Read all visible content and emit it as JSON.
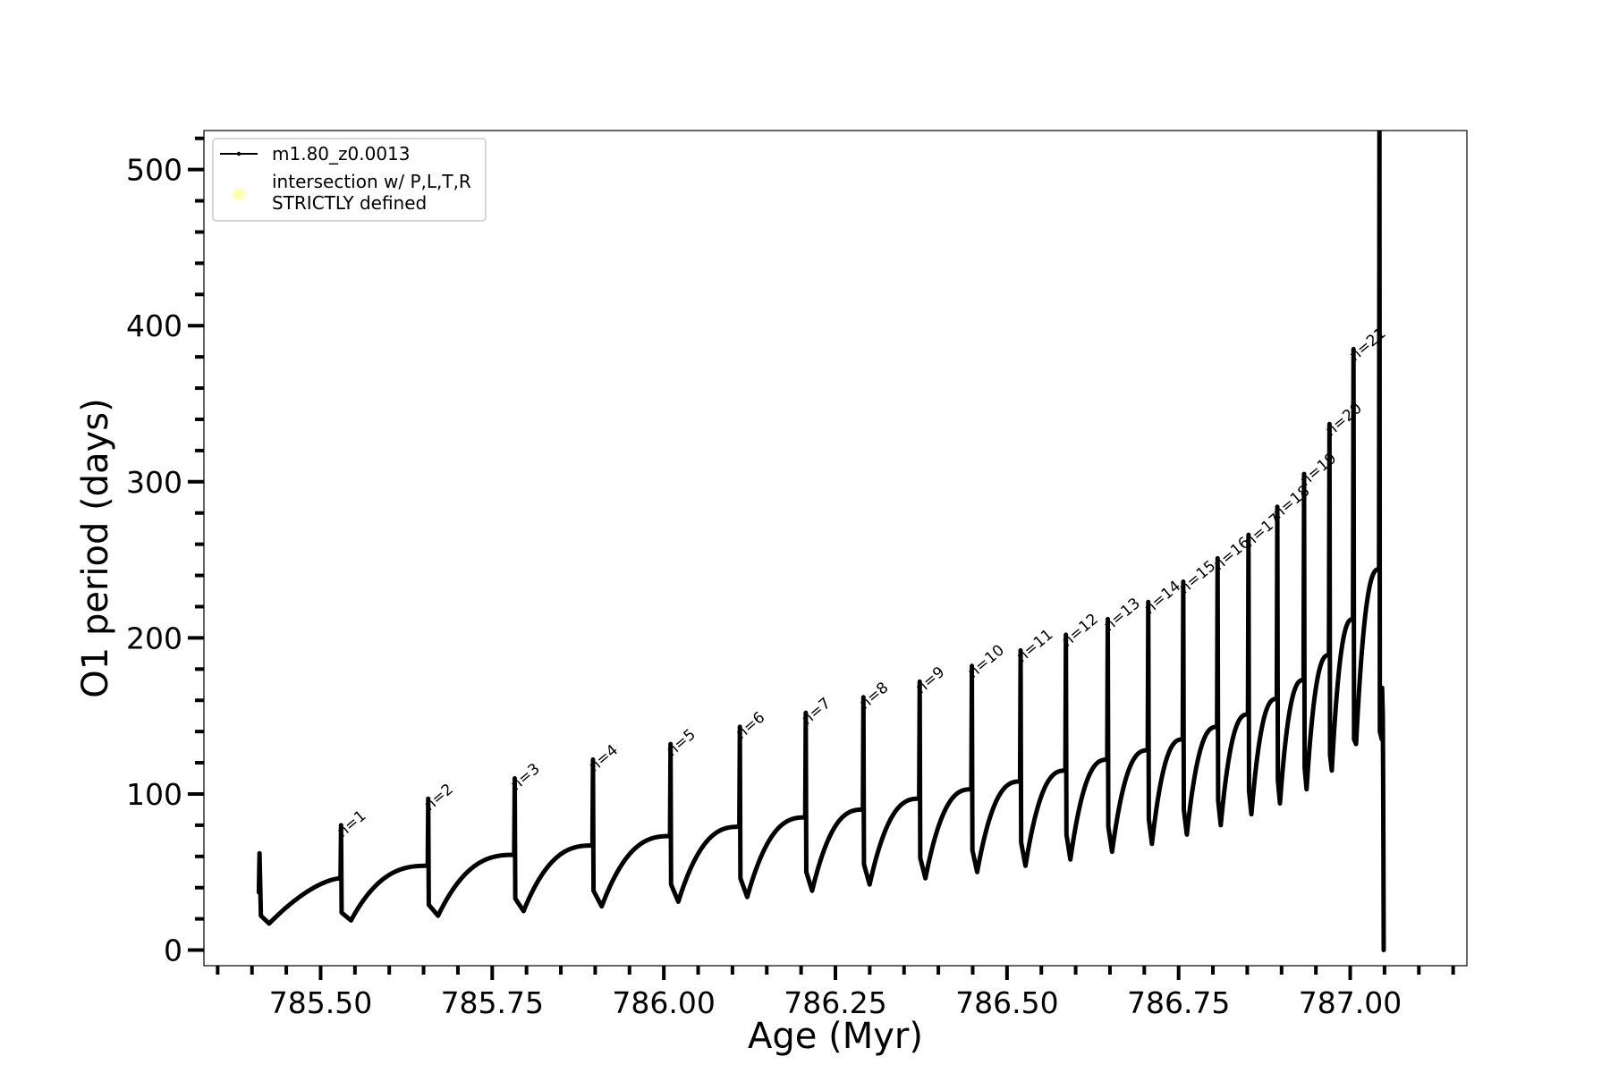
{
  "chart_data": {
    "type": "line",
    "title": "",
    "xlabel": "Age (Myr)",
    "ylabel": "O1 period (days)",
    "xlim": [
      785.33,
      787.17
    ],
    "ylim": [
      -10,
      525
    ],
    "x_ticks": [
      785.5,
      785.75,
      786.0,
      786.25,
      786.5,
      786.75,
      787.0
    ],
    "x_tick_labels": [
      "785.50",
      "785.75",
      "786.00",
      "786.25",
      "786.50",
      "786.75",
      "787.00"
    ],
    "y_ticks": [
      0,
      100,
      200,
      300,
      400,
      500
    ],
    "y_tick_labels": [
      "0",
      "100",
      "200",
      "300",
      "400",
      "500"
    ],
    "grid": false,
    "legend": {
      "placement": "top-left",
      "entries": [
        {
          "label": "m1.80_z0.0013",
          "marker": "line-dot",
          "color": "#000000"
        },
        {
          "label": "intersection w/ P,L,T,R\nSTRICTLY defined",
          "marker": "circle",
          "color": "#ffffb3"
        }
      ]
    },
    "series": [
      {
        "name": "m1.80_z0.0013",
        "color": "#000000",
        "start": {
          "age": 785.41,
          "period": 37,
          "spike_max": 62
        },
        "cycles": [
          {
            "label": "n=1",
            "age": 785.529,
            "prev_end": 46,
            "spike_max": 80,
            "spike_min": 24,
            "dip": 19
          },
          {
            "label": "n=2",
            "age": 785.656,
            "prev_end": 54,
            "spike_max": 97,
            "spike_min": 29,
            "dip": 22
          },
          {
            "label": "n=3",
            "age": 785.782,
            "prev_end": 61,
            "spike_max": 110,
            "spike_min": 33,
            "dip": 25
          },
          {
            "label": "n=4",
            "age": 785.896,
            "prev_end": 67,
            "spike_max": 122,
            "spike_min": 38,
            "dip": 28
          },
          {
            "label": "n=5",
            "age": 786.009,
            "prev_end": 73,
            "spike_max": 132,
            "spike_min": 42,
            "dip": 31
          },
          {
            "label": "n=6",
            "age": 786.11,
            "prev_end": 79,
            "spike_max": 143,
            "spike_min": 46,
            "dip": 34
          },
          {
            "label": "n=7",
            "age": 786.206,
            "prev_end": 85,
            "spike_max": 152,
            "spike_min": 50,
            "dip": 38
          },
          {
            "label": "n=8",
            "age": 786.29,
            "prev_end": 90,
            "spike_max": 162,
            "spike_min": 55,
            "dip": 42
          },
          {
            "label": "n=9",
            "age": 786.372,
            "prev_end": 97,
            "spike_max": 172,
            "spike_min": 59,
            "dip": 46
          },
          {
            "label": "n=10",
            "age": 786.448,
            "prev_end": 103,
            "spike_max": 182,
            "spike_min": 64,
            "dip": 50
          },
          {
            "label": "n=11",
            "age": 786.519,
            "prev_end": 108,
            "spike_max": 192,
            "spike_min": 69,
            "dip": 54
          },
          {
            "label": "n=12",
            "age": 786.585,
            "prev_end": 115,
            "spike_max": 202,
            "spike_min": 74,
            "dip": 58
          },
          {
            "label": "n=13",
            "age": 786.646,
            "prev_end": 122,
            "spike_max": 212,
            "spike_min": 79,
            "dip": 63
          },
          {
            "label": "n=14",
            "age": 786.705,
            "prev_end": 128,
            "spike_max": 223,
            "spike_min": 84,
            "dip": 68
          },
          {
            "label": "n=15",
            "age": 786.756,
            "prev_end": 135,
            "spike_max": 236,
            "spike_min": 90,
            "dip": 74
          },
          {
            "label": "n=16",
            "age": 786.806,
            "prev_end": 143,
            "spike_max": 251,
            "spike_min": 96,
            "dip": 80
          },
          {
            "label": "n=17",
            "age": 786.851,
            "prev_end": 151,
            "spike_max": 266,
            "spike_min": 102,
            "dip": 87
          },
          {
            "label": "n=18",
            "age": 786.893,
            "prev_end": 161,
            "spike_max": 284,
            "spike_min": 109,
            "dip": 94
          },
          {
            "label": "n=19",
            "age": 786.932,
            "prev_end": 173,
            "spike_max": 305,
            "spike_min": 117,
            "dip": 103
          },
          {
            "label": "n=20",
            "age": 786.969,
            "prev_end": 189,
            "spike_max": 337,
            "spike_min": 125,
            "dip": 115
          },
          {
            "label": "n=21",
            "age": 787.004,
            "prev_end": 212,
            "spike_max": 385,
            "spike_min": 135,
            "dip": 132
          }
        ],
        "final": {
          "age": 787.042,
          "prev_end": 244,
          "spike_max": 525,
          "spike_min": 0,
          "spike_labels": [
            "n=21"
          ]
        }
      }
    ]
  }
}
